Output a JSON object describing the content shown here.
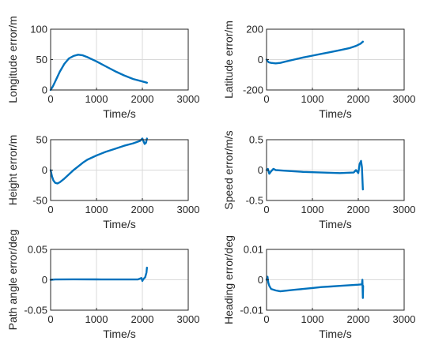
{
  "chart_data": [
    {
      "type": "line",
      "xlabel": "Time/s",
      "ylabel": "Longitude error/m",
      "xlim": [
        0,
        3000
      ],
      "ylim": [
        0,
        100
      ],
      "xticks": [
        0,
        1000,
        2000,
        3000
      ],
      "yticks": [
        0,
        50,
        100
      ],
      "grid": true,
      "color": "#0072BD",
      "series": [
        {
          "x": [
            0,
            50,
            100,
            200,
            300,
            400,
            500,
            600,
            700,
            800,
            1000,
            1200,
            1400,
            1600,
            1800,
            2000,
            2100
          ],
          "y": [
            0,
            6,
            14,
            30,
            43,
            52,
            56,
            58,
            57,
            54,
            47,
            39,
            31,
            24,
            18,
            14,
            12
          ]
        }
      ]
    },
    {
      "type": "line",
      "xlabel": "Time/s",
      "ylabel": "Latitude error/m",
      "xlim": [
        0,
        3000
      ],
      "ylim": [
        -200,
        200
      ],
      "xticks": [
        0,
        1000,
        2000,
        3000
      ],
      "yticks": [
        -200,
        0,
        200
      ],
      "grid": true,
      "color": "#0072BD",
      "series": [
        {
          "x": [
            0,
            20,
            50,
            100,
            200,
            300,
            400,
            600,
            800,
            1000,
            1200,
            1400,
            1600,
            1800,
            1950,
            2050,
            2100
          ],
          "y": [
            0,
            -10,
            -18,
            -22,
            -25,
            -22,
            -14,
            0,
            14,
            26,
            38,
            50,
            62,
            75,
            90,
            105,
            118
          ]
        }
      ]
    },
    {
      "type": "line",
      "xlabel": "Time/s",
      "ylabel": "Height error/m",
      "xlim": [
        0,
        3000
      ],
      "ylim": [
        -50,
        50
      ],
      "xticks": [
        0,
        1000,
        2000,
        3000
      ],
      "yticks": [
        -50,
        0,
        50
      ],
      "grid": true,
      "color": "#0072BD",
      "series": [
        {
          "x": [
            0,
            30,
            60,
            100,
            150,
            200,
            300,
            400,
            500,
            600,
            700,
            800,
            1000,
            1200,
            1400,
            1600,
            1800,
            1950,
            2000,
            2050,
            2080,
            2100
          ],
          "y": [
            0,
            -10,
            -17,
            -21,
            -22,
            -20,
            -14,
            -7,
            0,
            6,
            12,
            17,
            24,
            30,
            35,
            40,
            44,
            48,
            52,
            43,
            45,
            52
          ]
        }
      ]
    },
    {
      "type": "line",
      "xlabel": "Time/s",
      "ylabel": "Speed error/m/s",
      "xlim": [
        0,
        3000
      ],
      "ylim": [
        -0.5,
        0.5
      ],
      "xticks": [
        0,
        1000,
        2000,
        3000
      ],
      "yticks": [
        -0.5,
        0,
        0.5
      ],
      "grid": true,
      "color": "#0072BD",
      "series": [
        {
          "x": [
            0,
            30,
            60,
            100,
            150,
            200,
            400,
            800,
            1200,
            1600,
            1900,
            1950,
            2000,
            2030,
            2060,
            2080,
            2100
          ],
          "y": [
            0,
            0.02,
            -0.06,
            -0.02,
            0.02,
            0.0,
            -0.01,
            -0.03,
            -0.04,
            -0.05,
            -0.04,
            0.0,
            -0.05,
            0.1,
            0.15,
            0.05,
            -0.32
          ]
        }
      ]
    },
    {
      "type": "line",
      "xlabel": "Time/s",
      "ylabel": "Path angle error/deg",
      "xlim": [
        0,
        3000
      ],
      "ylim": [
        -0.05,
        0.05
      ],
      "xticks": [
        0,
        1000,
        2000,
        3000
      ],
      "yticks": [
        -0.05,
        0,
        0.05
      ],
      "grid": true,
      "color": "#0072BD",
      "series": [
        {
          "x": [
            0,
            100,
            500,
            1000,
            1500,
            1900,
            1980,
            2000,
            2020,
            2060,
            2090,
            2100
          ],
          "y": [
            0,
            0.0005,
            0.0008,
            0.0006,
            0.0005,
            0.0005,
            0.003,
            -0.002,
            0.001,
            0.004,
            0.012,
            0.02
          ]
        }
      ]
    },
    {
      "type": "line",
      "xlabel": "Time/s",
      "ylabel": "Heading error/deg",
      "xlim": [
        0,
        3000
      ],
      "ylim": [
        -0.01,
        0.01
      ],
      "xticks": [
        0,
        1000,
        2000,
        3000
      ],
      "yticks": [
        -0.01,
        0,
        0.01
      ],
      "grid": true,
      "color": "#0072BD",
      "series": [
        {
          "x": [
            0,
            20,
            40,
            60,
            100,
            200,
            300,
            400,
            600,
            800,
            1000,
            1200,
            1400,
            1600,
            1800,
            2000,
            2080,
            2090,
            2100,
            2105
          ],
          "y": [
            0,
            0.001,
            -0.001,
            -0.002,
            -0.003,
            -0.0035,
            -0.0038,
            -0.0036,
            -0.0033,
            -0.003,
            -0.0027,
            -0.0024,
            -0.0022,
            -0.002,
            -0.0018,
            -0.0016,
            -0.0015,
            0.0,
            -0.006,
            -0.002
          ]
        }
      ]
    }
  ]
}
